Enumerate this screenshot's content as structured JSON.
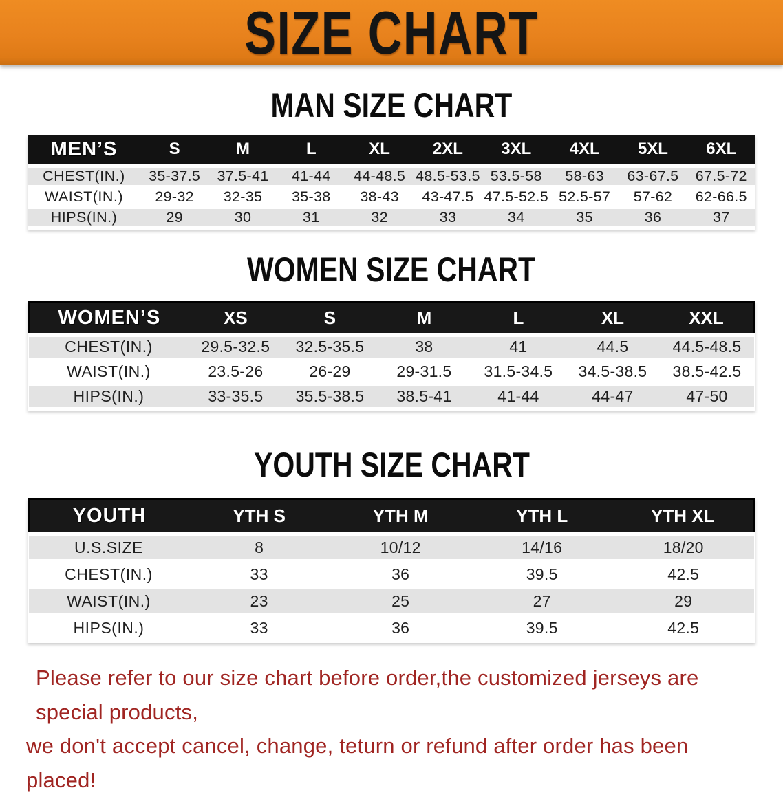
{
  "banner": {
    "title": "SIZE CHART"
  },
  "sections": {
    "men": {
      "heading": "MAN SIZE CHART",
      "table": {
        "label": "MEN’S",
        "columns": [
          "S",
          "M",
          "L",
          "XL",
          "2XL",
          "3XL",
          "4XL",
          "5XL",
          "6XL"
        ],
        "rows": [
          {
            "label": "CHEST(IN.)",
            "values": [
              "35-37.5",
              "37.5-41",
              "41-44",
              "44-48.5",
              "48.5-53.5",
              "53.5-58",
              "58-63",
              "63-67.5",
              "67.5-72"
            ]
          },
          {
            "label": "WAIST(IN.)",
            "values": [
              "29-32",
              "32-35",
              "35-38",
              "38-43",
              "43-47.5",
              "47.5-52.5",
              "52.5-57",
              "57-62",
              "62-66.5"
            ]
          },
          {
            "label": "HIPS(IN.)",
            "values": [
              "29",
              "30",
              "31",
              "32",
              "33",
              "34",
              "35",
              "36",
              "37"
            ]
          }
        ]
      }
    },
    "women": {
      "heading": "WOMEN SIZE CHART",
      "table": {
        "label": "WOMEN’S",
        "columns": [
          "XS",
          "S",
          "M",
          "L",
          "XL",
          "XXL"
        ],
        "rows": [
          {
            "label": "CHEST(IN.)",
            "values": [
              "29.5-32.5",
              "32.5-35.5",
              "38",
              "41",
              "44.5",
              "44.5-48.5"
            ]
          },
          {
            "label": "WAIST(IN.)",
            "values": [
              "23.5-26",
              "26-29",
              "29-31.5",
              "31.5-34.5",
              "34.5-38.5",
              "38.5-42.5"
            ]
          },
          {
            "label": "HIPS(IN.)",
            "values": [
              "33-35.5",
              "35.5-38.5",
              "38.5-41",
              "41-44",
              "44-47",
              "47-50"
            ]
          }
        ]
      }
    },
    "youth": {
      "heading": "YOUTH SIZE CHART",
      "table": {
        "label": "YOUTH",
        "columns": [
          "YTH S",
          "YTH M",
          "YTH L",
          "YTH XL"
        ],
        "rows": [
          {
            "label": "U.S.SIZE",
            "values": [
              "8",
              "10/12",
              "14/16",
              "18/20"
            ]
          },
          {
            "label": "CHEST(IN.)",
            "values": [
              "33",
              "36",
              "39.5",
              "42.5"
            ]
          },
          {
            "label": "WAIST(IN.)",
            "values": [
              "23",
              "25",
              "27",
              "29"
            ]
          },
          {
            "label": "HIPS(IN.)",
            "values": [
              "33",
              "36",
              "39.5",
              "42.5"
            ]
          }
        ]
      }
    }
  },
  "disclaimer": {
    "line1": "Please refer to our size chart before order,the customized jerseys are special products,",
    "line2": "we don't accept cancel, change, teturn or refund after order has been placed!"
  },
  "colors": {
    "banner_orange": "#e8821d",
    "header_black": "#121212",
    "row_gray": "#e3e3e3",
    "disclaimer_red": "#a02522"
  }
}
